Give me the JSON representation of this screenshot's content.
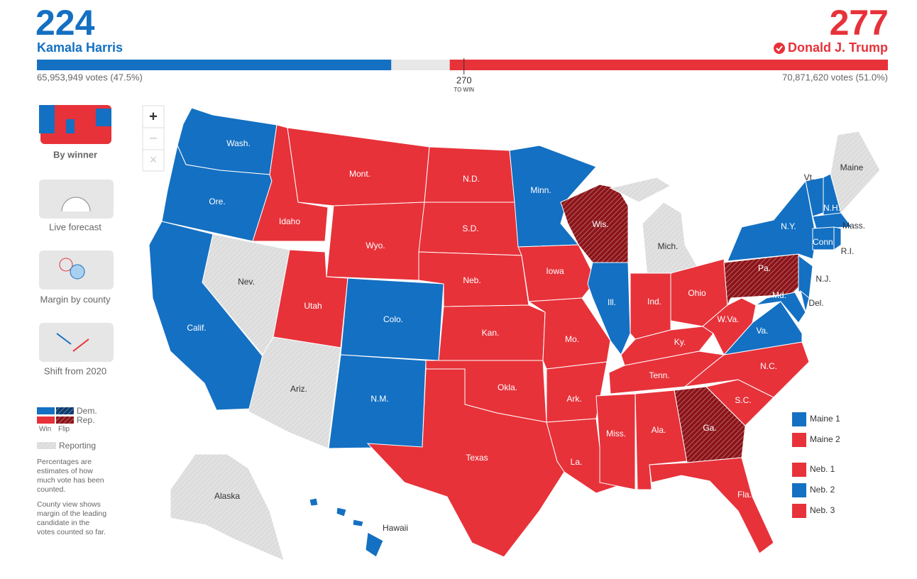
{
  "header": {
    "left": {
      "electoral_votes": 224,
      "name": "Kamala Harris",
      "popular": "65,953,949 votes (47.5%)",
      "color": "#1470c2"
    },
    "right": {
      "electoral_votes": 277,
      "name": "Donald J. Trump",
      "popular": "70,871,620 votes (51.0%)",
      "color": "#e7323a"
    },
    "threshold": {
      "value": 270,
      "label": "TO WIN"
    },
    "xlim": [
      0,
      538
    ]
  },
  "sidebar": {
    "views": [
      "By winner",
      "Live forecast",
      "Margin by county",
      "Shift from 2020"
    ],
    "legend": {
      "dem": {
        "label": "Dem.",
        "win_color": "#1470c2",
        "flip_color": "#0b3c6e"
      },
      "rep": {
        "label": "Rep.",
        "win_color": "#e7323a",
        "flip_color": "#8c1419"
      },
      "win": "Win",
      "flip": "Flip",
      "reporting": {
        "label": "Reporting",
        "color": "#dcdcdc"
      }
    },
    "notes": [
      [
        "Percentages are",
        "estimates of how",
        "much vote has been",
        "counted."
      ],
      [
        "County view shows",
        "margin of the leading",
        "candidate in the",
        "votes counted so far."
      ]
    ]
  },
  "zoom": [
    "+",
    "−",
    "×"
  ],
  "map": {
    "states": [
      {
        "label": "Wash.",
        "color": "#1470c2"
      },
      {
        "label": "Ore.",
        "color": "#1470c2"
      },
      {
        "label": "Calif.",
        "color": "#1470c2"
      },
      {
        "label": "Nev.",
        "color": "#dcdcdc"
      },
      {
        "label": "Idaho",
        "color": "#e7323a"
      },
      {
        "label": "Mont.",
        "color": "#e7323a"
      },
      {
        "label": "Wyo.",
        "color": "#e7323a"
      },
      {
        "label": "Utah",
        "color": "#e7323a"
      },
      {
        "label": "Ariz.",
        "color": "#dcdcdc"
      },
      {
        "label": "Colo.",
        "color": "#1470c2"
      },
      {
        "label": "N.M.",
        "color": "#1470c2"
      },
      {
        "label": "N.D.",
        "color": "#e7323a"
      },
      {
        "label": "S.D.",
        "color": "#e7323a"
      },
      {
        "label": "Neb.",
        "color": "#e7323a"
      },
      {
        "label": "Kan.",
        "color": "#e7323a"
      },
      {
        "label": "Okla.",
        "color": "#e7323a"
      },
      {
        "label": "Texas",
        "color": "#e7323a"
      },
      {
        "label": "Minn.",
        "color": "#1470c2"
      },
      {
        "label": "Iowa",
        "color": "#e7323a"
      },
      {
        "label": "Mo.",
        "color": "#e7323a"
      },
      {
        "label": "Ark.",
        "color": "#e7323a"
      },
      {
        "label": "La.",
        "color": "#e7323a"
      },
      {
        "label": "Wis.",
        "color": "#8c1419"
      },
      {
        "label": "Ill.",
        "color": "#1470c2"
      },
      {
        "label": "Mich.",
        "color": "#dcdcdc"
      },
      {
        "label": "Ind.",
        "color": "#e7323a"
      },
      {
        "label": "Ohio",
        "color": "#e7323a"
      },
      {
        "label": "Ky.",
        "color": "#e7323a"
      },
      {
        "label": "Tenn.",
        "color": "#e7323a"
      },
      {
        "label": "Miss.",
        "color": "#e7323a"
      },
      {
        "label": "Ala.",
        "color": "#e7323a"
      },
      {
        "label": "Ga.",
        "color": "#8c1419"
      },
      {
        "label": "Fla.",
        "color": "#e7323a"
      },
      {
        "label": "S.C.",
        "color": "#e7323a"
      },
      {
        "label": "N.C.",
        "color": "#e7323a"
      },
      {
        "label": "Va.",
        "color": "#1470c2"
      },
      {
        "label": "W.Va.",
        "color": "#e7323a"
      },
      {
        "label": "Pa.",
        "color": "#8c1419"
      },
      {
        "label": "N.Y.",
        "color": "#1470c2"
      },
      {
        "label": "N.J.",
        "color": "#1470c2"
      },
      {
        "label": "Md.",
        "color": "#1470c2"
      },
      {
        "label": "Del.",
        "color": "#1470c2"
      },
      {
        "label": "Vt.",
        "color": "#1470c2"
      },
      {
        "label": "N.H.",
        "color": "#1470c2"
      },
      {
        "label": "Maine",
        "color": "#dcdcdc"
      },
      {
        "label": "Mass.",
        "color": "#1470c2"
      },
      {
        "label": "Conn.",
        "color": "#1470c2"
      },
      {
        "label": "R.I.",
        "color": "#1470c2"
      },
      {
        "label": "Alaska",
        "color": "#dcdcdc"
      },
      {
        "label": "Hawaii",
        "color": "#1470c2"
      }
    ],
    "districts": [
      {
        "label": "Maine 1",
        "color": "#1470c2"
      },
      {
        "label": "Maine 2",
        "color": "#e7323a"
      },
      {
        "label": "Neb. 1",
        "color": "#e7323a"
      },
      {
        "label": "Neb. 2",
        "color": "#1470c2"
      },
      {
        "label": "Neb. 3",
        "color": "#e7323a"
      }
    ]
  }
}
